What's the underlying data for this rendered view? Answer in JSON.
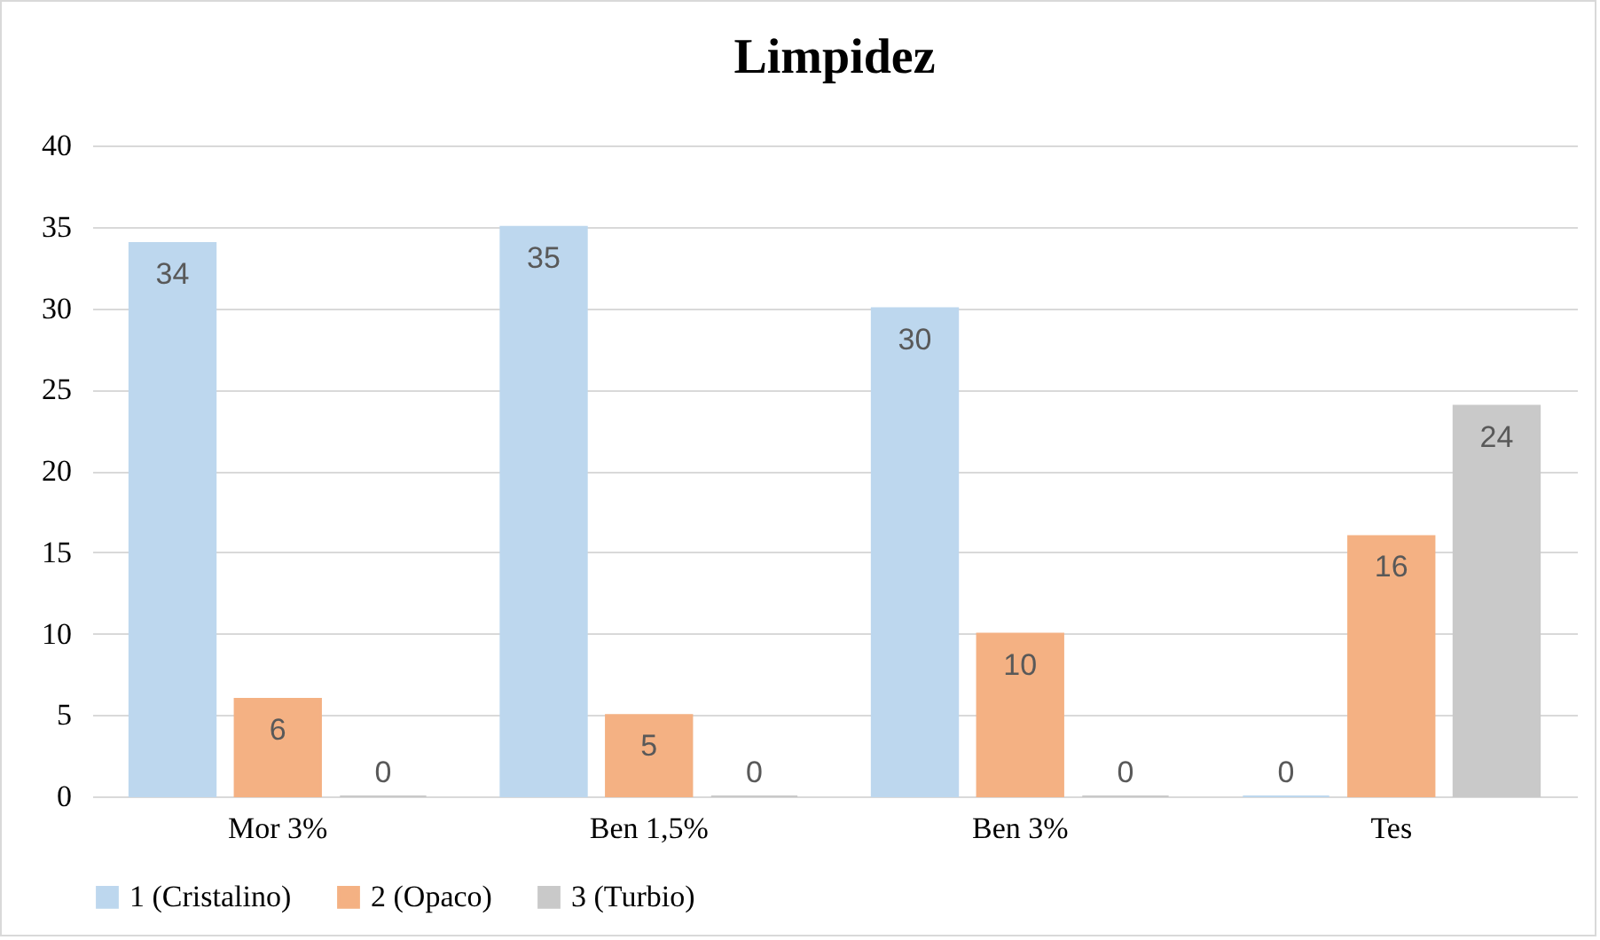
{
  "chart_data": {
    "type": "bar",
    "title": "Limpidez",
    "categories": [
      "Mor 3%",
      "Ben 1,5%",
      "Ben 3%",
      "Tes"
    ],
    "series": [
      {
        "name": "1 (Cristalino)",
        "color": "#bdd7ee",
        "values": [
          34,
          35,
          30,
          0
        ]
      },
      {
        "name": "2 (Opaco)",
        "color": "#f4b183",
        "values": [
          6,
          5,
          10,
          16
        ]
      },
      {
        "name": "3 (Turbio)",
        "color": "#c9c9c9",
        "values": [
          0,
          0,
          0,
          24
        ]
      }
    ],
    "ylim": [
      0,
      40
    ],
    "yticks": [
      0,
      5,
      10,
      15,
      20,
      25,
      30,
      35,
      40
    ],
    "grid": "y",
    "legend": "bottom",
    "data_labels": true
  }
}
